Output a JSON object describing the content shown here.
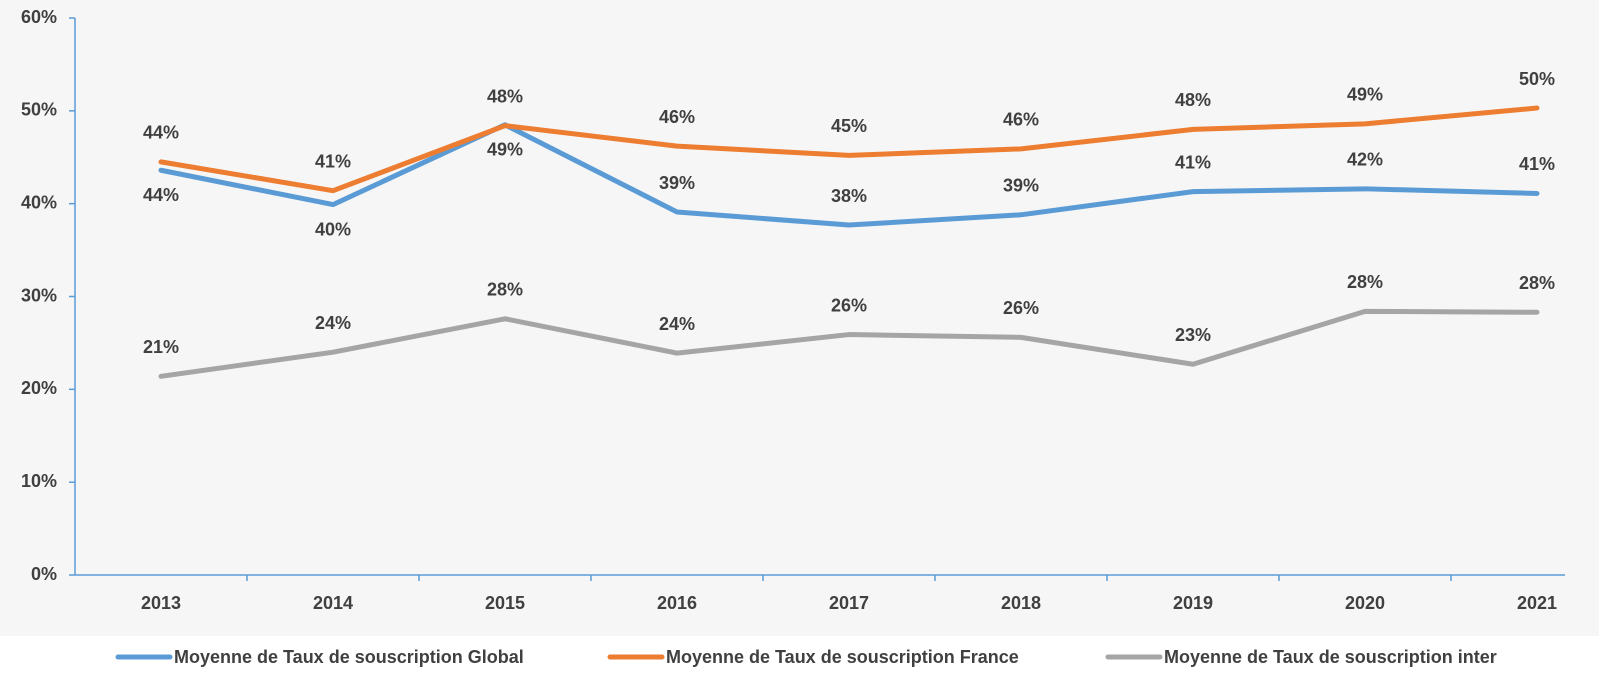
{
  "chart_data": {
    "type": "line",
    "categories": [
      "2013",
      "2014",
      "2015",
      "2016",
      "2017",
      "2018",
      "2019",
      "2020",
      "2021"
    ],
    "series": [
      {
        "name": "Moyenne de Taux de souscription Global",
        "color": "#5b9bd5",
        "values": [
          43.6,
          39.9,
          48.5,
          39.1,
          37.7,
          38.8,
          41.3,
          41.6,
          41.1
        ],
        "value_labels": [
          "44%",
          "40%",
          "49%",
          "39%",
          "38%",
          "39%",
          "41%",
          "42%",
          "41%"
        ]
      },
      {
        "name": "Moyenne de Taux de souscription France",
        "color": "#ed7d31",
        "values": [
          44.5,
          41.4,
          48.4,
          46.2,
          45.2,
          45.9,
          48.0,
          48.6,
          50.3
        ],
        "value_labels": [
          "44%",
          "41%",
          "48%",
          "46%",
          "45%",
          "46%",
          "48%",
          "49%",
          "50%"
        ]
      },
      {
        "name": "Moyenne de Taux de souscription inter",
        "color": "#a5a5a5",
        "values": [
          21.4,
          24.0,
          27.6,
          23.9,
          25.9,
          25.6,
          22.7,
          28.4,
          28.3
        ],
        "value_labels": [
          "21%",
          "24%",
          "28%",
          "24%",
          "26%",
          "26%",
          "23%",
          "28%",
          "28%"
        ]
      }
    ],
    "ylim": [
      0,
      60
    ],
    "yticks": [
      {
        "value": 0,
        "label": "0%"
      },
      {
        "value": 10,
        "label": "10%"
      },
      {
        "value": 20,
        "label": "20%"
      },
      {
        "value": 30,
        "label": "30%"
      },
      {
        "value": 40,
        "label": "40%"
      },
      {
        "value": 50,
        "label": "50%"
      },
      {
        "value": 60,
        "label": "60%"
      }
    ],
    "legend": "bottom"
  }
}
